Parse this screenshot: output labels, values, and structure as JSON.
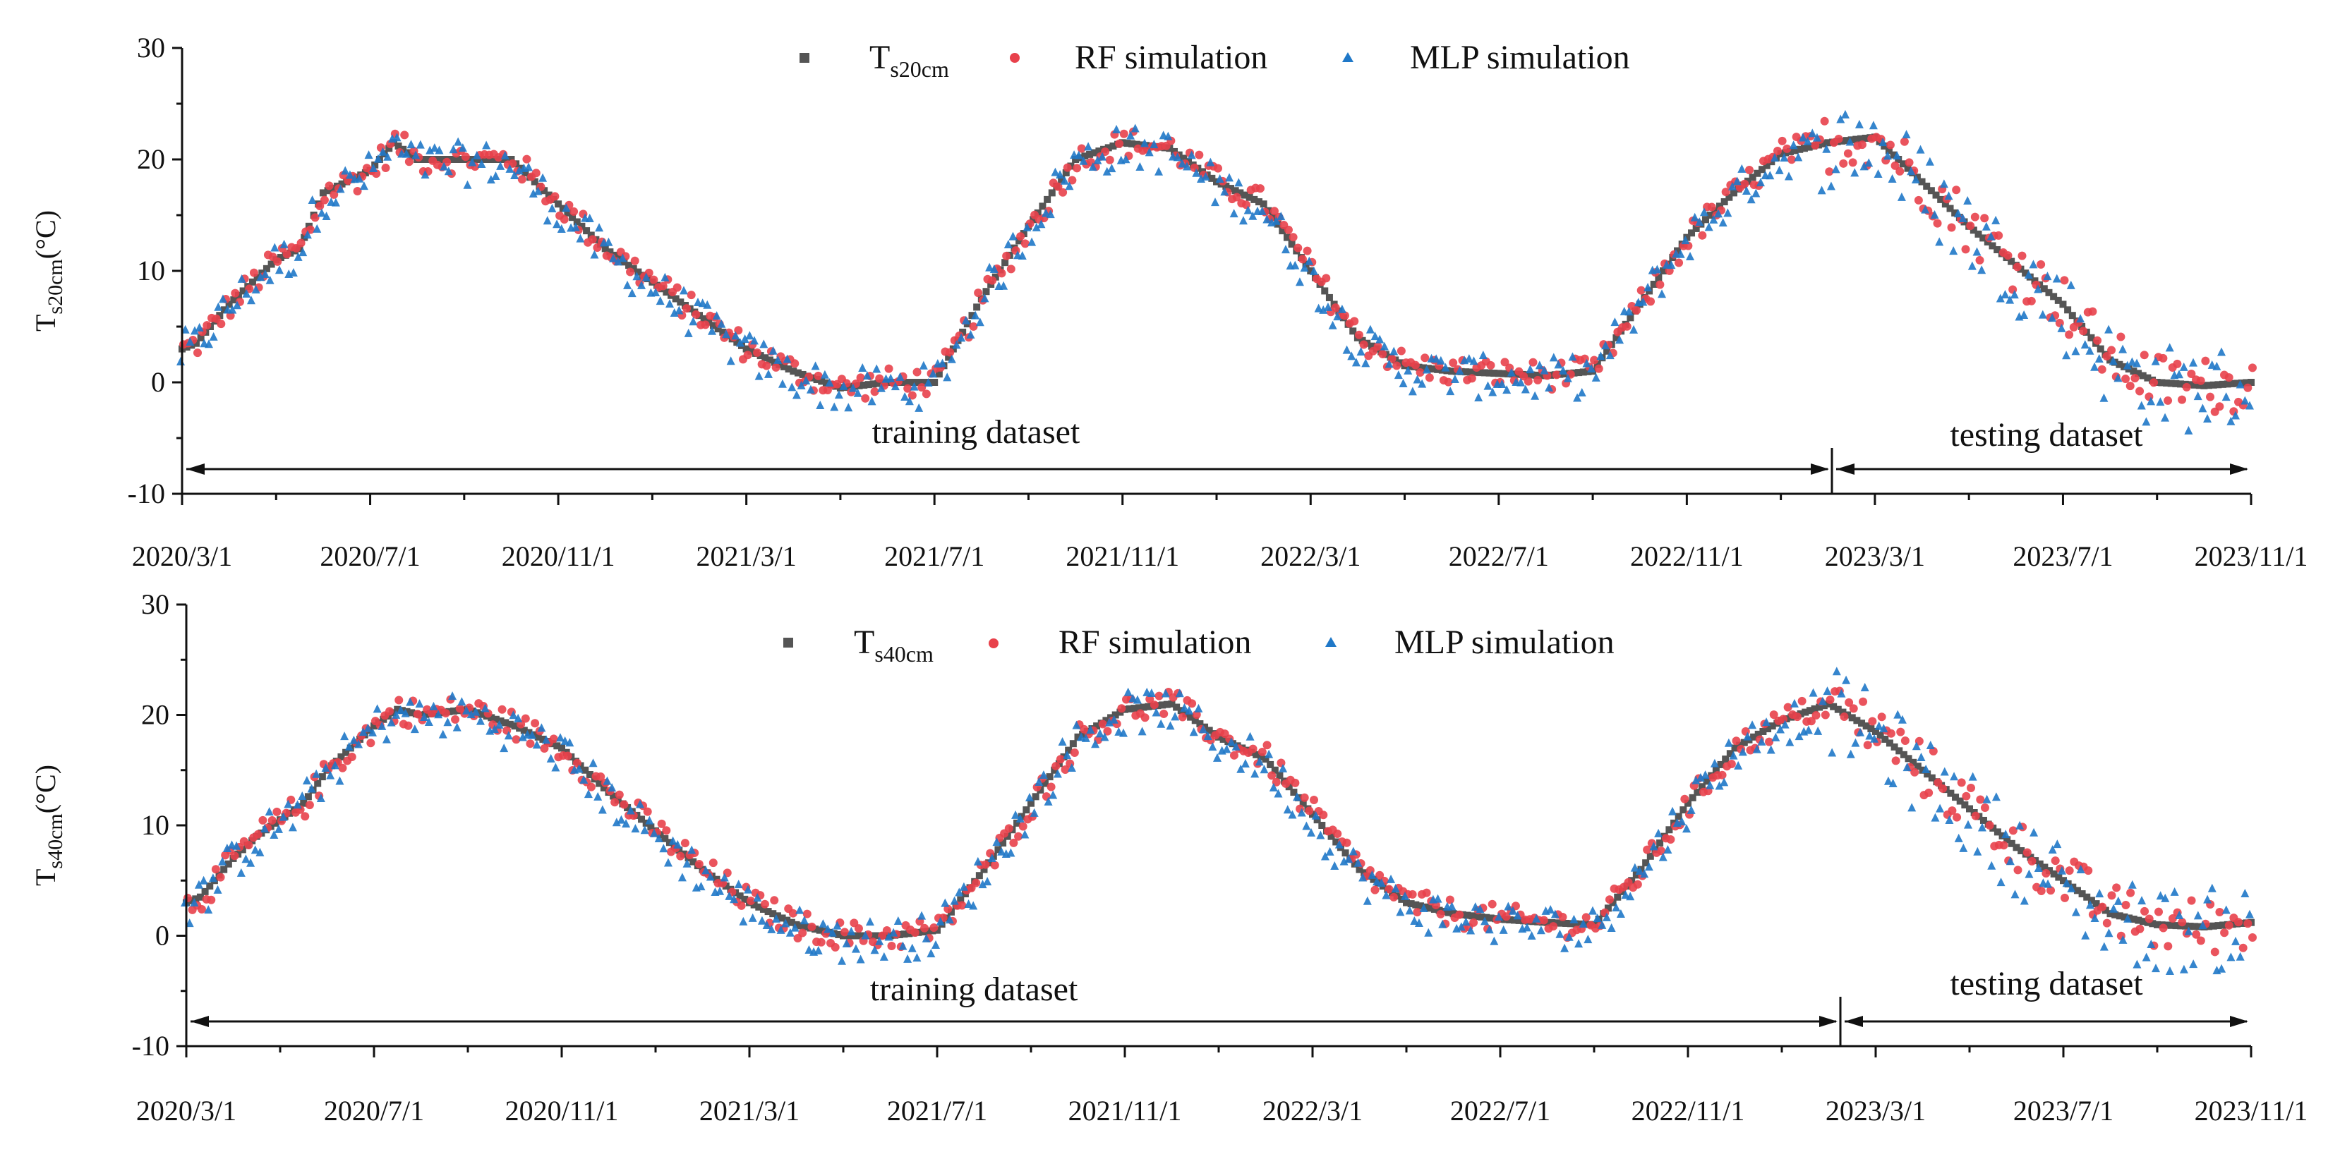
{
  "chart_data": [
    {
      "type": "scatter",
      "panel": "top",
      "ylabel": {
        "main": "T",
        "sub": "s20cm",
        "unit": "(°C)"
      },
      "ylim": [
        -10,
        30
      ],
      "y_ticks": [
        "30",
        "20",
        "10",
        "0",
        "-10"
      ],
      "x_tick_labels": [
        "2020/3/1",
        "2020/7/1",
        "2020/11/1",
        "2021/3/1",
        "2021/7/1",
        "2021/11/1",
        "2022/3/1",
        "2022/7/1",
        "2022/11/1",
        "2023/3/1",
        "2023/7/1",
        "2023/11/1"
      ],
      "legend": [
        {
          "name": "T",
          "sub": "s20cm",
          "marker": "square",
          "color": "#555555"
        },
        {
          "name": "RF simulation",
          "sub": "",
          "marker": "circle",
          "color": "#e8414b"
        },
        {
          "name": "MLP simulation",
          "sub": "",
          "marker": "triangle",
          "color": "#1f78c8"
        }
      ],
      "split_month_index": 34.8,
      "annotations": {
        "train": "training dataset",
        "test": "testing dataset"
      },
      "series": [
        {
          "name": "Ts20cm",
          "color": "#555555",
          "months": [
            0,
            0.3,
            1,
            1.5,
            2,
            2.5,
            3,
            3.5,
            4,
            4.5,
            5,
            6,
            7,
            8,
            9,
            10,
            11,
            12,
            13,
            14,
            15,
            16,
            17,
            18,
            19,
            20,
            21,
            22,
            23,
            24,
            25,
            26,
            27,
            28,
            29,
            30,
            31,
            32,
            33,
            34,
            35,
            36,
            37,
            38,
            39,
            40,
            41,
            42,
            43,
            44
          ],
          "values": [
            3,
            3.5,
            7,
            9,
            11,
            12,
            17,
            18,
            19,
            21.5,
            20,
            20,
            20,
            16,
            12,
            9,
            6,
            3,
            1,
            -0.5,
            0,
            0,
            7.5,
            14,
            20,
            21.5,
            21,
            18,
            16,
            10,
            4,
            1.5,
            1,
            0.8,
            0.6,
            1,
            7,
            13,
            17,
            20.5,
            21.5,
            22,
            18,
            14,
            10.5,
            7,
            2,
            0,
            -0.3,
            0
          ]
        },
        {
          "name": "RF simulation",
          "color": "#e8414b",
          "values": []
        },
        {
          "name": "MLP simulation",
          "color": "#1f78c8",
          "values": []
        }
      ]
    },
    {
      "type": "scatter",
      "panel": "bottom",
      "ylabel": {
        "main": "T",
        "sub": "s40cm",
        "unit": "(°C)"
      },
      "ylim": [
        -10,
        30
      ],
      "y_ticks": [
        "30",
        "20",
        "10",
        "0",
        "-10"
      ],
      "x_tick_labels": [
        "2020/3/1",
        "2020/7/1",
        "2020/11/1",
        "2021/3/1",
        "2021/7/1",
        "2021/11/1",
        "2022/3/1",
        "2022/7/1",
        "2022/11/1",
        "2023/3/1",
        "2023/7/1",
        "2023/11/1"
      ],
      "legend": [
        {
          "name": "T",
          "sub": "s40cm",
          "marker": "square",
          "color": "#555555"
        },
        {
          "name": "RF simulation",
          "sub": "",
          "marker": "circle",
          "color": "#e8414b"
        },
        {
          "name": "MLP simulation",
          "sub": "",
          "marker": "triangle",
          "color": "#1f78c8"
        }
      ],
      "split_month_index": 35.0,
      "annotations": {
        "train": "training dataset",
        "test": "testing dataset"
      },
      "series": [
        {
          "name": "Ts40cm",
          "color": "#555555",
          "months": [
            0,
            0.3,
            1,
            1.5,
            2,
            2.5,
            3,
            3.5,
            4,
            4.5,
            5,
            6,
            7,
            8,
            9,
            10,
            11,
            12,
            13,
            14,
            15,
            16,
            17,
            18,
            19,
            20,
            21,
            22,
            23,
            24,
            25,
            26,
            27,
            28,
            29,
            30,
            31,
            32,
            33,
            34,
            35,
            36,
            37,
            38,
            39,
            40,
            41,
            42,
            43,
            44
          ],
          "values": [
            3,
            3.5,
            7,
            9,
            10.5,
            12,
            15,
            17,
            19,
            20.5,
            20,
            20.5,
            19,
            17,
            13,
            9.5,
            6,
            3,
            1,
            0,
            0,
            0.5,
            6,
            12,
            18,
            20.5,
            21,
            18,
            16,
            11,
            6,
            3,
            2,
            1.5,
            1.2,
            1,
            6,
            12,
            17,
            19.5,
            21,
            18.5,
            15,
            11.5,
            8,
            5,
            2,
            1,
            0.8,
            1.2
          ]
        },
        {
          "name": "RF simulation",
          "color": "#e8414b",
          "values": []
        },
        {
          "name": "MLP simulation",
          "color": "#1f78c8",
          "values": []
        }
      ]
    }
  ]
}
